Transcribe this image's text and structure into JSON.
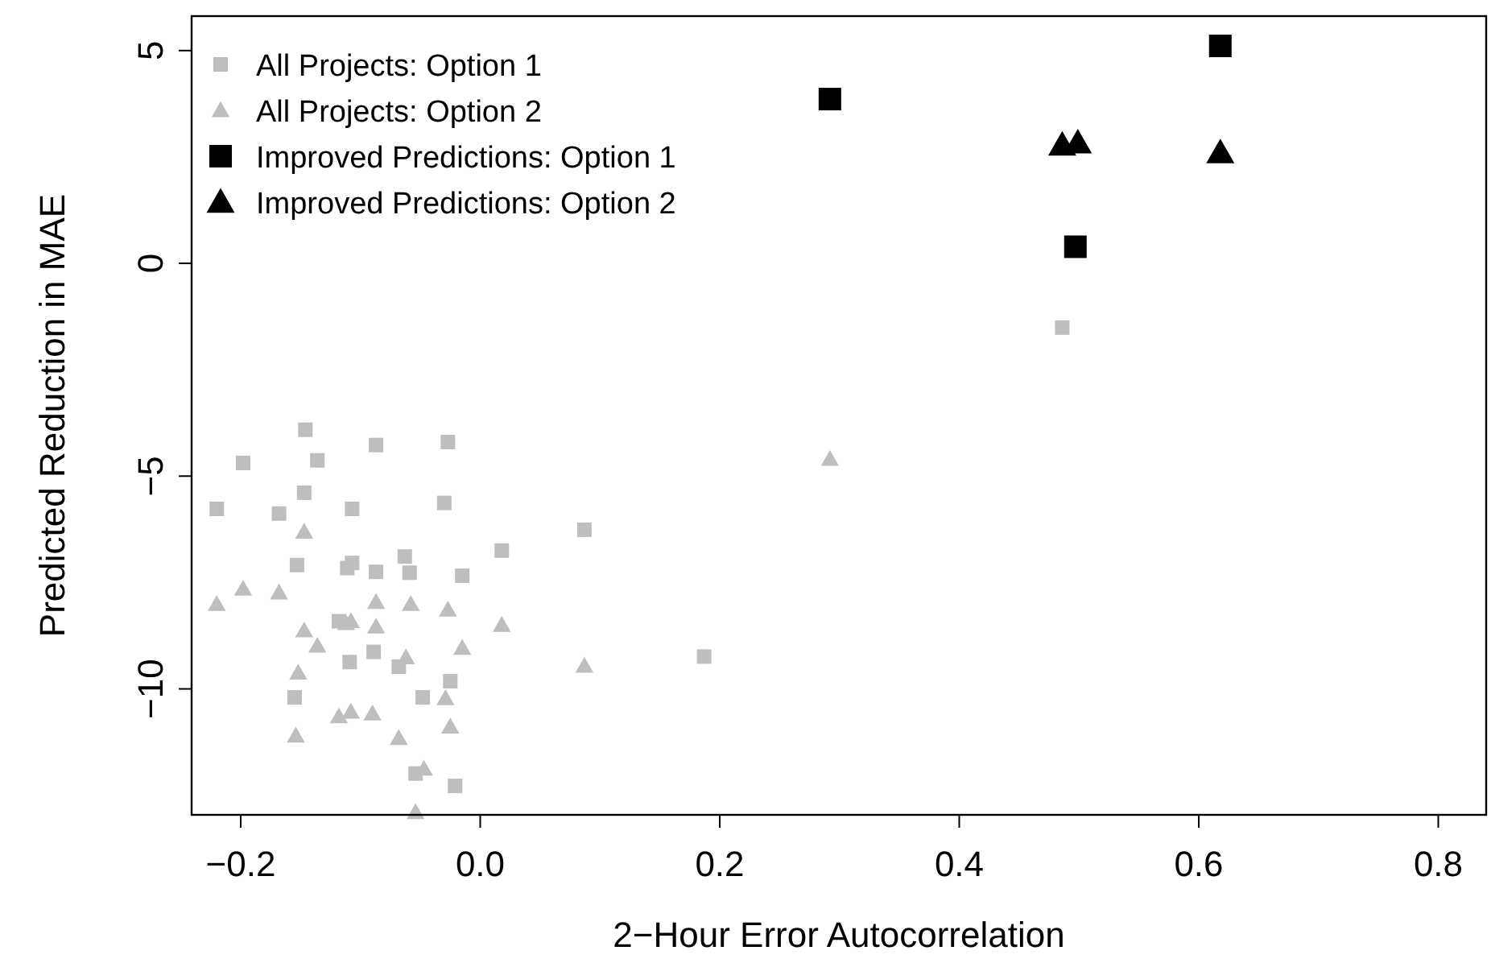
{
  "chart_data": {
    "type": "scatter",
    "xlabel": "2−Hour Error Autocorrelation",
    "ylabel": "Predicted Reduction in MAE",
    "xlim": [
      -0.241,
      0.84
    ],
    "ylim": [
      -12.96,
      5.81
    ],
    "xticks": [
      {
        "value": -0.2,
        "label": "−0.2"
      },
      {
        "value": 0,
        "label": "0.0"
      },
      {
        "value": 0.2,
        "label": "0.2"
      },
      {
        "value": 0.4,
        "label": "0.4"
      },
      {
        "value": 0.6,
        "label": "0.6"
      },
      {
        "value": 0.8,
        "label": "0.8"
      }
    ],
    "yticks": [
      {
        "value": -10,
        "label": "−10"
      },
      {
        "value": -5,
        "label": "−5"
      },
      {
        "value": 0,
        "label": "0"
      },
      {
        "value": 5,
        "label": "5"
      }
    ],
    "grid": false,
    "legend": "top left",
    "series": [
      {
        "name": "All Projects: Option 1",
        "color": "#bebebe",
        "marker": "square",
        "x": [
          -0.146,
          -0.198,
          -0.136,
          -0.087,
          -0.027,
          -0.147,
          -0.22,
          -0.107,
          -0.03,
          0.087,
          -0.168,
          -0.153,
          0.018,
          -0.063,
          -0.111,
          -0.107,
          -0.087,
          -0.059,
          -0.015,
          -0.118,
          -0.109,
          -0.089,
          -0.068,
          -0.025,
          -0.155,
          -0.048,
          -0.054,
          -0.021,
          0.187,
          0.486
        ],
        "values": [
          -3.91,
          -4.69,
          -4.63,
          -4.27,
          -4.2,
          -5.39,
          -5.77,
          -5.77,
          -5.63,
          -6.26,
          -5.88,
          -7.09,
          -6.75,
          -6.89,
          -7.16,
          -7.04,
          -7.25,
          -7.27,
          -7.34,
          -8.41,
          -9.37,
          -9.13,
          -9.48,
          -9.82,
          -10.2,
          -10.2,
          -11.99,
          -12.28,
          -9.24,
          -1.51
        ]
      },
      {
        "name": "All Projects: Option 2",
        "color": "#bebebe",
        "marker": "triangle",
        "x": [
          -0.147,
          -0.22,
          -0.198,
          -0.168,
          -0.147,
          -0.136,
          -0.152,
          -0.154,
          -0.118,
          -0.108,
          -0.09,
          -0.068,
          -0.047,
          -0.054,
          -0.112,
          -0.108,
          -0.087,
          -0.087,
          -0.058,
          -0.027,
          -0.062,
          -0.015,
          -0.029,
          -0.025,
          0.018,
          0.087,
          0.292
        ],
        "values": [
          -6.31,
          -8.01,
          -7.65,
          -7.74,
          -8.63,
          -8.99,
          -9.62,
          -11.1,
          -10.65,
          -10.54,
          -10.58,
          -11.16,
          -11.88,
          -12.9,
          -8.46,
          -8.41,
          -7.96,
          -8.54,
          -8.01,
          -8.14,
          -9.26,
          -9.04,
          -10.22,
          -10.89,
          -8.5,
          -9.46,
          -4.6
        ]
      },
      {
        "name": "Improved Predictions: Option 1",
        "color": "#000000",
        "marker": "square",
        "x": [
          0.292,
          0.618,
          0.497
        ],
        "values": [
          3.86,
          5.11,
          0.39
        ]
      },
      {
        "name": "Improved Predictions: Option 2",
        "color": "#000000",
        "marker": "triangle",
        "x": [
          0.486,
          0.499,
          0.618
        ],
        "values": [
          2.78,
          2.83,
          2.6
        ]
      }
    ]
  }
}
